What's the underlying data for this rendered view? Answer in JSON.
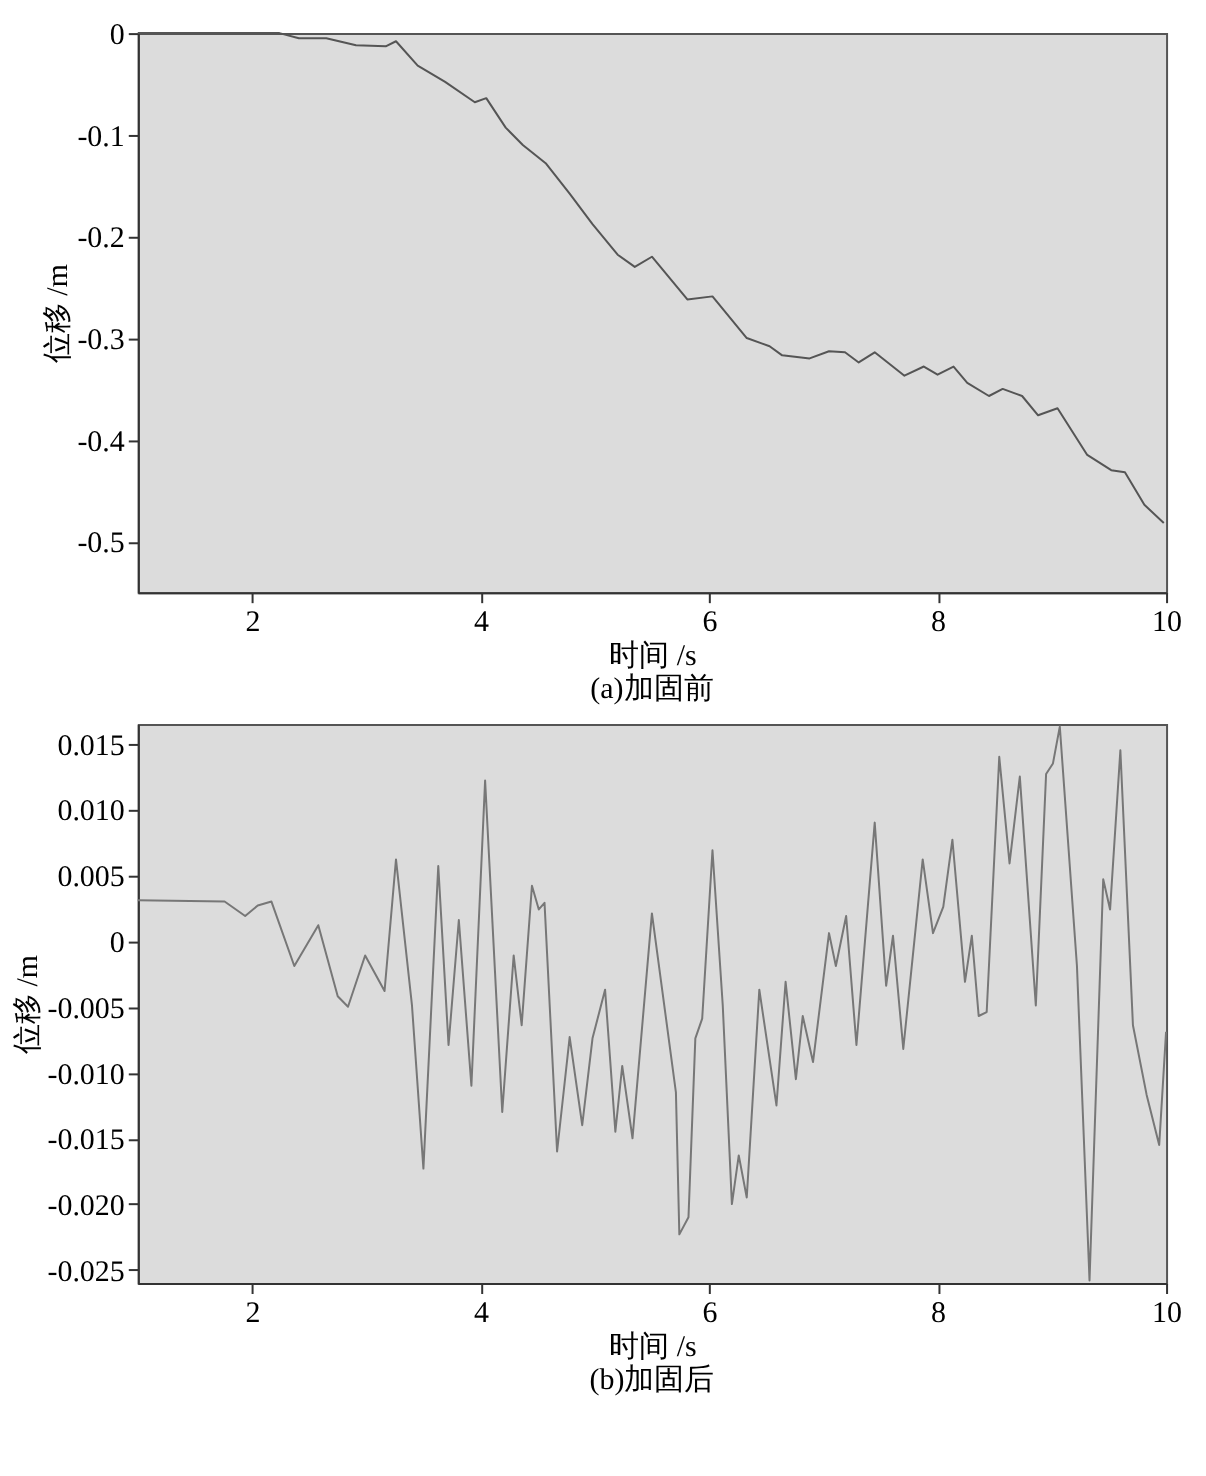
{
  "chart_data": [
    {
      "type": "line",
      "title": "(a)加固前",
      "xlabel": "时间 /s",
      "ylabel": "位移 /m",
      "xlim": [
        1,
        10
      ],
      "xticks": [
        2,
        4,
        6,
        8,
        10
      ],
      "ylim": [
        -0.55,
        0
      ],
      "yticks": [
        0,
        -0.1,
        -0.2,
        -0.3,
        -0.4,
        -0.5
      ],
      "grid": false,
      "legend": false,
      "series": [
        {
          "color": "#555555",
          "x": [
            1.0,
            2.24,
            2.41,
            2.65,
            2.91,
            3.17,
            3.26,
            3.45,
            3.69,
            3.95,
            4.05,
            4.22,
            4.37,
            4.57,
            4.78,
            4.98,
            5.2,
            5.35,
            5.5,
            5.81,
            6.03,
            6.33,
            6.53,
            6.64,
            6.88,
            7.05,
            7.19,
            7.31,
            7.45,
            7.71,
            7.88,
            8.0,
            8.14,
            8.26,
            8.45,
            8.57,
            8.74,
            8.88,
            9.05,
            9.31,
            9.52,
            9.64,
            9.81,
            9.98
          ],
          "values": [
            0,
            0,
            -0.005,
            -0.005,
            -0.012,
            -0.013,
            -0.008,
            -0.032,
            -0.048,
            -0.068,
            -0.064,
            -0.093,
            -0.11,
            -0.128,
            -0.158,
            -0.188,
            -0.218,
            -0.23,
            -0.22,
            -0.262,
            -0.259,
            -0.3,
            -0.308,
            -0.317,
            -0.32,
            -0.313,
            -0.314,
            -0.324,
            -0.314,
            -0.337,
            -0.328,
            -0.336,
            -0.328,
            -0.344,
            -0.357,
            -0.35,
            -0.357,
            -0.376,
            -0.369,
            -0.415,
            -0.43,
            -0.432,
            -0.464,
            -0.482
          ]
        }
      ]
    },
    {
      "type": "line",
      "title": "(b)加固后",
      "xlabel": "时间 /s",
      "ylabel": "位移 /m",
      "xlim": [
        1,
        10
      ],
      "xticks": [
        2,
        4,
        6,
        8,
        10
      ],
      "ylim": [
        -0.026,
        0.0165
      ],
      "yticks": [
        0.015,
        {
          "value": 0.01,
          "label": "0.010"
        },
        0.005,
        0,
        -0.005,
        {
          "value": -0.01,
          "label": "-0.010"
        },
        -0.015,
        {
          "value": -0.02,
          "label": "-0.020"
        },
        -0.025
      ],
      "grid": false,
      "legend": false,
      "series": [
        {
          "color": "#777777",
          "x": [
            1.0,
            1.76,
            1.94,
            2.05,
            2.17,
            2.37,
            2.58,
            2.75,
            2.84,
            2.99,
            3.16,
            3.26,
            3.4,
            3.5,
            3.63,
            3.72,
            3.81,
            3.92,
            4.04,
            4.19,
            4.29,
            4.36,
            4.45,
            4.51,
            4.56,
            4.67,
            4.78,
            4.89,
            4.98,
            5.09,
            5.18,
            5.24,
            5.33,
            5.5,
            5.71,
            5.74,
            5.82,
            5.88,
            5.94,
            6.03,
            6.12,
            6.2,
            6.26,
            6.33,
            6.44,
            6.59,
            6.67,
            6.76,
            6.82,
            6.91,
            7.05,
            7.11,
            7.2,
            7.29,
            7.45,
            7.55,
            7.61,
            7.7,
            7.87,
            7.96,
            8.05,
            8.13,
            8.24,
            8.3,
            8.36,
            8.43,
            8.54,
            8.63,
            8.72,
            8.86,
            8.95,
            9.01,
            9.07,
            9.22,
            9.33,
            9.45,
            9.51,
            9.6,
            9.71,
            9.83,
            9.94,
            10.0
          ],
          "values": [
            0.0031,
            0.003,
            0.0019,
            0.0027,
            0.003,
            -0.0019,
            0.0012,
            -0.0042,
            -0.005,
            -0.0011,
            -0.0038,
            0.0062,
            -0.0049,
            -0.0173,
            0.0057,
            -0.0079,
            0.0016,
            -0.011,
            0.0122,
            -0.013,
            -0.0011,
            -0.0064,
            0.0042,
            0.0024,
            0.0029,
            -0.016,
            -0.0073,
            -0.014,
            -0.0074,
            -0.0037,
            -0.0145,
            -0.0095,
            -0.015,
            0.0021,
            -0.0115,
            -0.0223,
            -0.021,
            -0.0074,
            -0.0059,
            0.0069,
            -0.0049,
            -0.02,
            -0.0163,
            -0.0195,
            -0.0037,
            -0.0125,
            -0.0031,
            -0.0105,
            -0.0057,
            -0.0092,
            0.0006,
            -0.0019,
            0.0019,
            -0.0079,
            0.009,
            -0.0034,
            0.0004,
            -0.0082,
            0.0062,
            0.0006,
            0.0026,
            0.0077,
            -0.0031,
            0.0004,
            -0.0057,
            -0.0054,
            0.014,
            0.0059,
            0.0125,
            -0.0049,
            0.0127,
            0.0135,
            0.0163,
            -0.0019,
            -0.0258,
            0.0047,
            0.0024,
            0.0145,
            -0.0064,
            -0.0117,
            -0.0155,
            -0.0069
          ]
        }
      ]
    }
  ]
}
